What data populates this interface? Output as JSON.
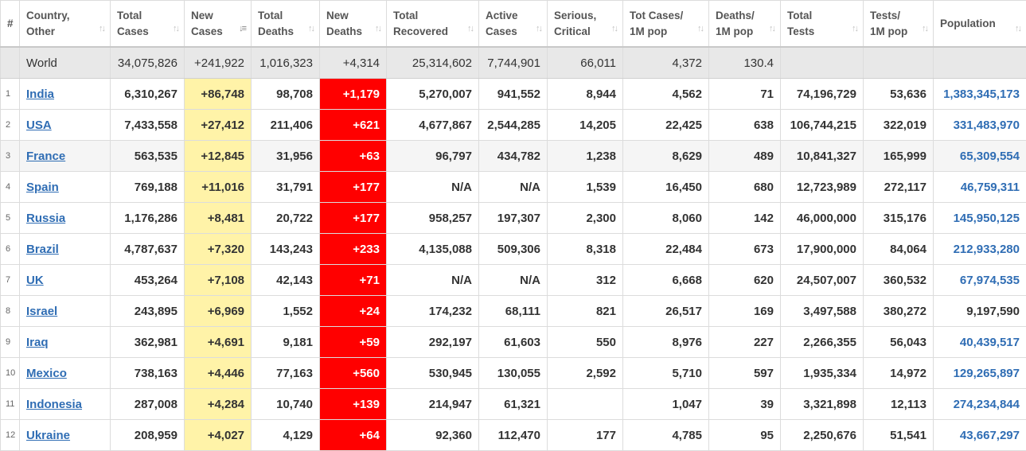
{
  "headers": [
    {
      "l1": "#",
      "l2": ""
    },
    {
      "l1": "Country,",
      "l2": "Other"
    },
    {
      "l1": "Total",
      "l2": "Cases"
    },
    {
      "l1": "New",
      "l2": "Cases"
    },
    {
      "l1": "Total",
      "l2": "Deaths"
    },
    {
      "l1": "New",
      "l2": "Deaths"
    },
    {
      "l1": "Total",
      "l2": "Recovered"
    },
    {
      "l1": "Active",
      "l2": "Cases"
    },
    {
      "l1": "Serious,",
      "l2": "Critical"
    },
    {
      "l1": "Tot Cases/",
      "l2": "1M pop"
    },
    {
      "l1": "Deaths/",
      "l2": "1M pop"
    },
    {
      "l1": "Total",
      "l2": "Tests"
    },
    {
      "l1": "Tests/",
      "l2": "1M pop"
    },
    {
      "l1": "",
      "l2": "Population"
    }
  ],
  "sort_icon": "sort-arrows-icon",
  "active_sort_icon": "sort-desc-icon",
  "world": {
    "name": "World",
    "total_cases": "34,075,826",
    "new_cases": "+241,922",
    "total_deaths": "1,016,323",
    "new_deaths": "+4,314",
    "total_recovered": "25,314,602",
    "active_cases": "7,744,901",
    "serious": "66,011",
    "cases_per_m": "4,372",
    "deaths_per_m": "130.4",
    "total_tests": "",
    "tests_per_m": "",
    "population": ""
  },
  "rows": [
    {
      "num": "1",
      "country": "India",
      "total_cases": "6,310,267",
      "new_cases": "+86,748",
      "total_deaths": "98,708",
      "new_deaths": "+1,179",
      "total_recovered": "5,270,007",
      "active_cases": "941,552",
      "serious": "8,944",
      "cases_per_m": "4,562",
      "deaths_per_m": "71",
      "total_tests": "74,196,729",
      "tests_per_m": "53,636",
      "population": "1,383,345,173"
    },
    {
      "num": "2",
      "country": "USA",
      "total_cases": "7,433,558",
      "new_cases": "+27,412",
      "total_deaths": "211,406",
      "new_deaths": "+621",
      "total_recovered": "4,677,867",
      "active_cases": "2,544,285",
      "serious": "14,205",
      "cases_per_m": "22,425",
      "deaths_per_m": "638",
      "total_tests": "106,744,215",
      "tests_per_m": "322,019",
      "population": "331,483,970"
    },
    {
      "num": "3",
      "country": "France",
      "total_cases": "563,535",
      "new_cases": "+12,845",
      "total_deaths": "31,956",
      "new_deaths": "+63",
      "total_recovered": "96,797",
      "active_cases": "434,782",
      "serious": "1,238",
      "cases_per_m": "8,629",
      "deaths_per_m": "489",
      "total_tests": "10,841,327",
      "tests_per_m": "165,999",
      "population": "65,309,554"
    },
    {
      "num": "4",
      "country": "Spain",
      "total_cases": "769,188",
      "new_cases": "+11,016",
      "total_deaths": "31,791",
      "new_deaths": "+177",
      "total_recovered": "N/A",
      "active_cases": "N/A",
      "serious": "1,539",
      "cases_per_m": "16,450",
      "deaths_per_m": "680",
      "total_tests": "12,723,989",
      "tests_per_m": "272,117",
      "population": "46,759,311"
    },
    {
      "num": "5",
      "country": "Russia",
      "total_cases": "1,176,286",
      "new_cases": "+8,481",
      "total_deaths": "20,722",
      "new_deaths": "+177",
      "total_recovered": "958,257",
      "active_cases": "197,307",
      "serious": "2,300",
      "cases_per_m": "8,060",
      "deaths_per_m": "142",
      "total_tests": "46,000,000",
      "tests_per_m": "315,176",
      "population": "145,950,125"
    },
    {
      "num": "6",
      "country": "Brazil",
      "total_cases": "4,787,637",
      "new_cases": "+7,320",
      "total_deaths": "143,243",
      "new_deaths": "+233",
      "total_recovered": "4,135,088",
      "active_cases": "509,306",
      "serious": "8,318",
      "cases_per_m": "22,484",
      "deaths_per_m": "673",
      "total_tests": "17,900,000",
      "tests_per_m": "84,064",
      "population": "212,933,280"
    },
    {
      "num": "7",
      "country": "UK",
      "total_cases": "453,264",
      "new_cases": "+7,108",
      "total_deaths": "42,143",
      "new_deaths": "+71",
      "total_recovered": "N/A",
      "active_cases": "N/A",
      "serious": "312",
      "cases_per_m": "6,668",
      "deaths_per_m": "620",
      "total_tests": "24,507,007",
      "tests_per_m": "360,532",
      "population": "67,974,535"
    },
    {
      "num": "8",
      "country": "Israel",
      "total_cases": "243,895",
      "new_cases": "+6,969",
      "total_deaths": "1,552",
      "new_deaths": "+24",
      "total_recovered": "174,232",
      "active_cases": "68,111",
      "serious": "821",
      "cases_per_m": "26,517",
      "deaths_per_m": "169",
      "total_tests": "3,497,588",
      "tests_per_m": "380,272",
      "population": "9,197,590"
    },
    {
      "num": "9",
      "country": "Iraq",
      "total_cases": "362,981",
      "new_cases": "+4,691",
      "total_deaths": "9,181",
      "new_deaths": "+59",
      "total_recovered": "292,197",
      "active_cases": "61,603",
      "serious": "550",
      "cases_per_m": "8,976",
      "deaths_per_m": "227",
      "total_tests": "2,266,355",
      "tests_per_m": "56,043",
      "population": "40,439,517"
    },
    {
      "num": "10",
      "country": "Mexico",
      "total_cases": "738,163",
      "new_cases": "+4,446",
      "total_deaths": "77,163",
      "new_deaths": "+560",
      "total_recovered": "530,945",
      "active_cases": "130,055",
      "serious": "2,592",
      "cases_per_m": "5,710",
      "deaths_per_m": "597",
      "total_tests": "1,935,334",
      "tests_per_m": "14,972",
      "population": "129,265,897"
    },
    {
      "num": "11",
      "country": "Indonesia",
      "total_cases": "287,008",
      "new_cases": "+4,284",
      "total_deaths": "10,740",
      "new_deaths": "+139",
      "total_recovered": "214,947",
      "active_cases": "61,321",
      "serious": "",
      "cases_per_m": "1,047",
      "deaths_per_m": "39",
      "total_tests": "3,321,898",
      "tests_per_m": "12,113",
      "population": "274,234,844"
    },
    {
      "num": "12",
      "country": "Ukraine",
      "total_cases": "208,959",
      "new_cases": "+4,027",
      "total_deaths": "4,129",
      "new_deaths": "+64",
      "total_recovered": "92,360",
      "active_cases": "112,470",
      "serious": "177",
      "cases_per_m": "4,785",
      "deaths_per_m": "95",
      "total_tests": "2,250,676",
      "tests_per_m": "51,541",
      "population": "43,667,297"
    }
  ],
  "colors": {
    "new_cases_bg": "#fff3a8",
    "new_deaths_bg": "#ff0000",
    "link": "#2f6db4",
    "world_bg": "#e8e8e8"
  }
}
